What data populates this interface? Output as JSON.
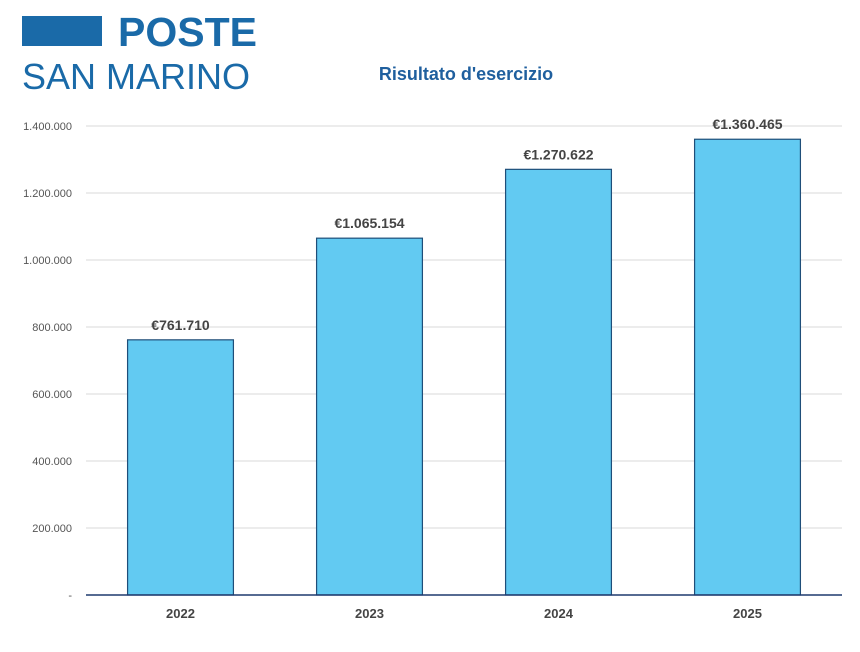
{
  "logo": {
    "line1": "POSTE",
    "line2": "SAN MARINO",
    "color": "#1a6aa8"
  },
  "chart_data": {
    "type": "bar",
    "title": "Risultato d'esercizio",
    "xlabel": "",
    "ylabel": "",
    "categories": [
      "2022",
      "2023",
      "2024",
      "2025"
    ],
    "values": [
      761710,
      1065154,
      1270622,
      1360465
    ],
    "data_labels": [
      "€761.710",
      "€1.065.154",
      "€1.270.622",
      "€1.360.465"
    ],
    "ylim": [
      0,
      1400000
    ],
    "y_ticks": [
      0,
      200000,
      400000,
      600000,
      800000,
      1000000,
      1200000,
      1400000
    ],
    "y_tick_labels": [
      "-",
      "200.000",
      "400.000",
      "600.000",
      "800.000",
      "1.000.000",
      "1.200.000",
      "1.400.000"
    ],
    "grid": true,
    "legend": "none",
    "bar_color": "#62caf2",
    "bar_border_color": "#1f4e79",
    "axis_color": "#1f3a6e"
  }
}
